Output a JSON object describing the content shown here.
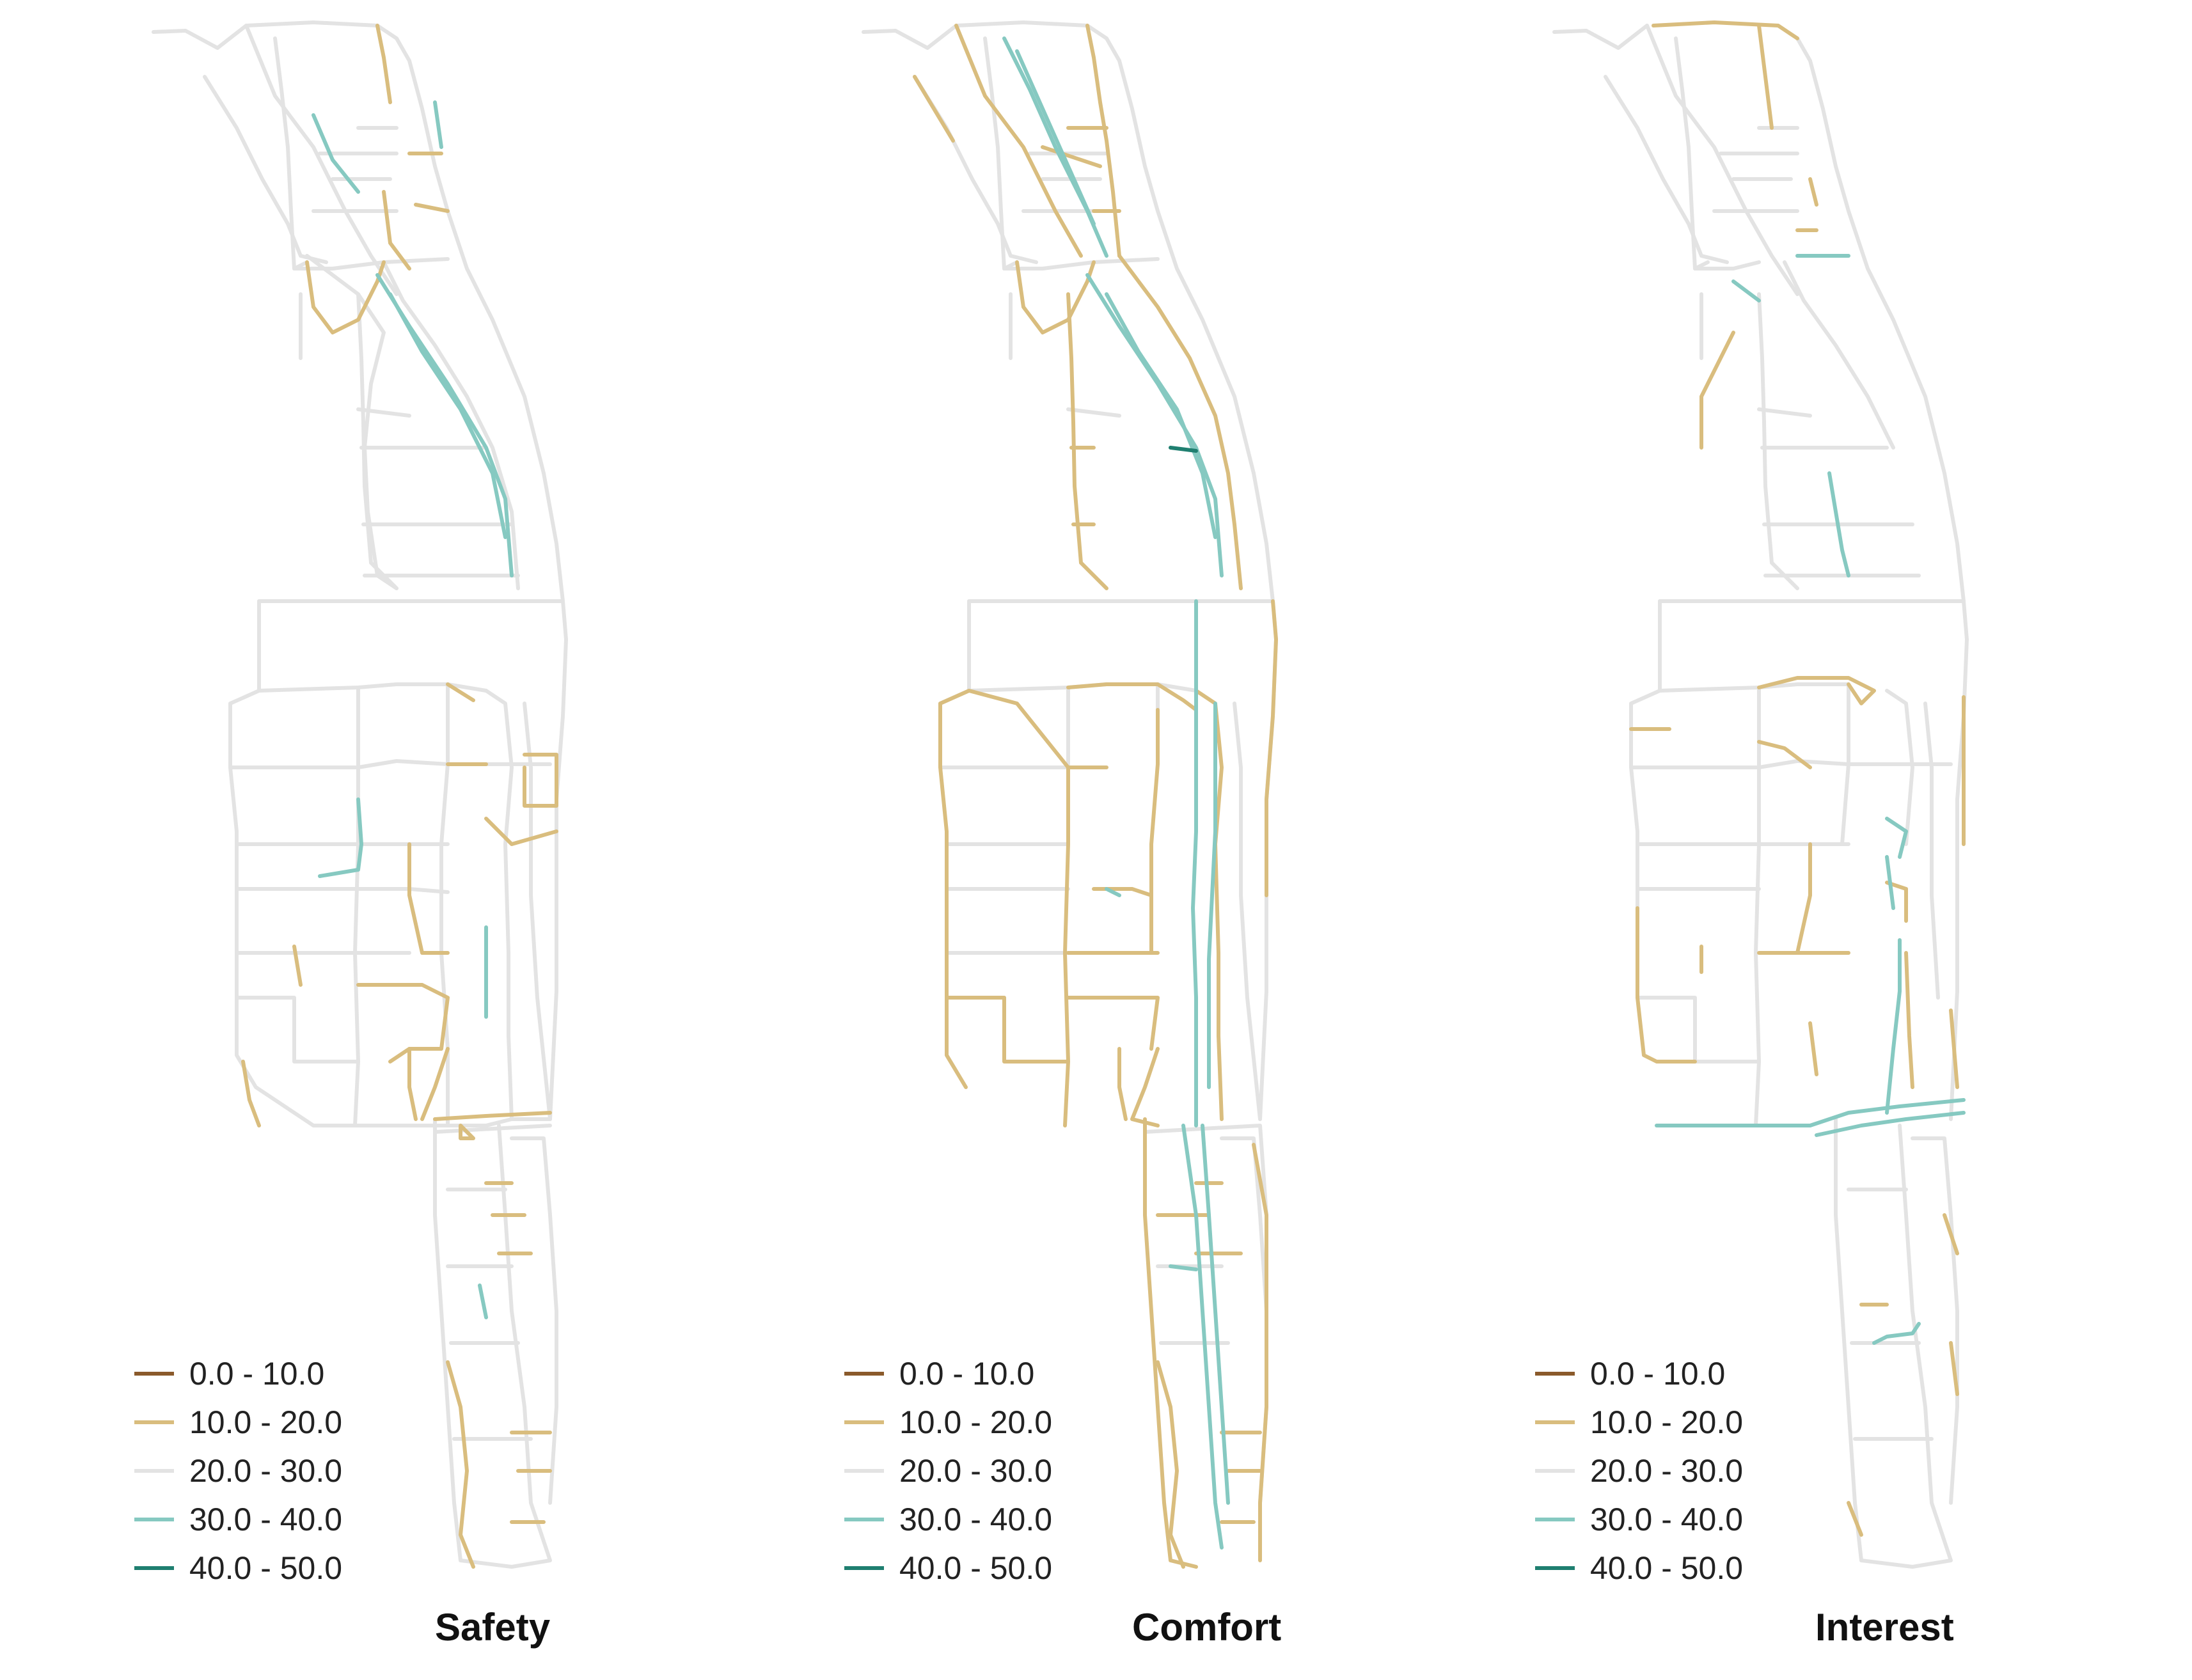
{
  "legend": {
    "classes": [
      {
        "label": "0.0 - 10.0",
        "color": "#8a5a2b"
      },
      {
        "label": "10.0 - 20.0",
        "color": "#d9bd7e"
      },
      {
        "label": "20.0 - 30.0",
        "color": "#e3e3e3"
      },
      {
        "label": "30.0 - 40.0",
        "color": "#86c9c1"
      },
      {
        "label": "40.0 - 50.0",
        "color": "#1f7f70"
      }
    ]
  },
  "panels": [
    {
      "title": "Safety"
    },
    {
      "title": "Comfort"
    },
    {
      "title": "Interest"
    }
  ]
}
